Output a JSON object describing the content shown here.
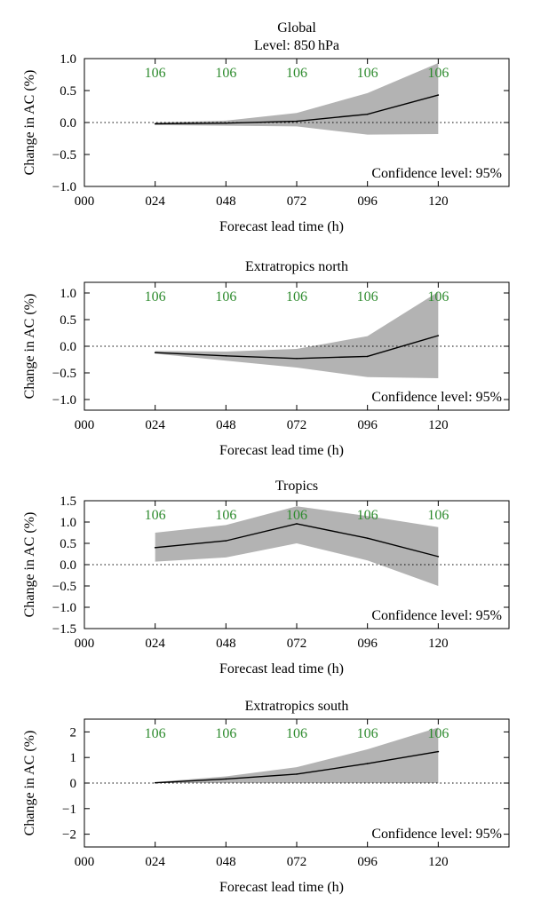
{
  "colors": {
    "band": "#b3b3b3",
    "line": "#000000",
    "count_text": "#2e8b2e",
    "axis": "#000000"
  },
  "chart_data": [
    {
      "type": "line",
      "title": "Global",
      "subtitle": "Level: 850 hPa",
      "xlabel": "Forecast lead time (h)",
      "ylabel": "Change in AC (%)",
      "xlim": [
        0,
        144
      ],
      "ylim": [
        -1.0,
        1.0
      ],
      "x_ticks": [
        0,
        24,
        48,
        72,
        96,
        120
      ],
      "x_tick_labels": [
        "000",
        "024",
        "048",
        "072",
        "096",
        "120"
      ],
      "y_ticks": [
        -1.0,
        -0.5,
        0.0,
        0.5,
        1.0
      ],
      "y_tick_labels": [
        "−1.0",
        "−0.5",
        "0.0",
        "0.5",
        "1.0"
      ],
      "x": [
        24,
        48,
        72,
        96,
        120
      ],
      "mean": [
        -0.02,
        -0.01,
        0.02,
        0.13,
        0.43
      ],
      "lower": [
        -0.04,
        -0.05,
        -0.06,
        -0.19,
        -0.18
      ],
      "upper": [
        0.0,
        0.03,
        0.15,
        0.46,
        0.93
      ],
      "sample_counts": [
        "106",
        "106",
        "106",
        "106",
        "106"
      ],
      "annotation": "Confidence level: 95%"
    },
    {
      "type": "line",
      "title": "Extratropics north",
      "xlabel": "Forecast lead time (h)",
      "ylabel": "Change in AC (%)",
      "xlim": [
        0,
        144
      ],
      "ylim": [
        -1.2,
        1.2
      ],
      "x_ticks": [
        0,
        24,
        48,
        72,
        96,
        120
      ],
      "x_tick_labels": [
        "000",
        "024",
        "048",
        "072",
        "096",
        "120"
      ],
      "y_ticks": [
        -1.0,
        -0.5,
        0.0,
        0.5,
        1.0
      ],
      "y_tick_labels": [
        "−1.0",
        "−0.5",
        "0.0",
        "0.5",
        "1.0"
      ],
      "x": [
        24,
        48,
        72,
        96,
        120
      ],
      "mean": [
        -0.12,
        -0.18,
        -0.23,
        -0.19,
        0.2
      ],
      "lower": [
        -0.14,
        -0.27,
        -0.4,
        -0.58,
        -0.6
      ],
      "upper": [
        -0.09,
        -0.1,
        -0.05,
        0.19,
        1.02
      ],
      "sample_counts": [
        "106",
        "106",
        "106",
        "106",
        "106"
      ],
      "annotation": "Confidence level: 95%"
    },
    {
      "type": "line",
      "title": "Tropics",
      "xlabel": "Forecast lead time (h)",
      "ylabel": "Change in AC (%)",
      "xlim": [
        0,
        144
      ],
      "ylim": [
        -1.5,
        1.5
      ],
      "x_ticks": [
        0,
        24,
        48,
        72,
        96,
        120
      ],
      "x_tick_labels": [
        "000",
        "024",
        "048",
        "072",
        "096",
        "120"
      ],
      "y_ticks": [
        -1.5,
        -1.0,
        -0.5,
        0.0,
        0.5,
        1.0,
        1.5
      ],
      "y_tick_labels": [
        "−1.5",
        "−1.0",
        "−0.5",
        "0.0",
        "0.5",
        "1.0",
        "1.5"
      ],
      "x": [
        24,
        48,
        72,
        96,
        120
      ],
      "mean": [
        0.4,
        0.56,
        0.96,
        0.62,
        0.19
      ],
      "lower": [
        0.07,
        0.17,
        0.5,
        0.1,
        -0.5
      ],
      "upper": [
        0.75,
        0.93,
        1.37,
        1.14,
        0.88
      ],
      "sample_counts": [
        "106",
        "106",
        "106",
        "106",
        "106"
      ],
      "annotation": "Confidence level: 95%"
    },
    {
      "type": "line",
      "title": "Extratropics south",
      "xlabel": "Forecast lead time (h)",
      "ylabel": "Change in AC (%)",
      "xlim": [
        0,
        144
      ],
      "ylim": [
        -2.5,
        2.5
      ],
      "x_ticks": [
        0,
        24,
        48,
        72,
        96,
        120
      ],
      "x_tick_labels": [
        "000",
        "024",
        "048",
        "072",
        "096",
        "120"
      ],
      "y_ticks": [
        -2,
        -1,
        0,
        1,
        2
      ],
      "y_tick_labels": [
        "−2",
        "−1",
        "0",
        "1",
        "2"
      ],
      "x": [
        24,
        48,
        72,
        96,
        120
      ],
      "mean": [
        0.01,
        0.16,
        0.35,
        0.76,
        1.23
      ],
      "lower": [
        0.0,
        0.0,
        0.0,
        0.0,
        0.0
      ],
      "upper": [
        0.04,
        0.26,
        0.62,
        1.32,
        2.17
      ],
      "sample_counts": [
        "106",
        "106",
        "106",
        "106",
        "106"
      ],
      "annotation": "Confidence level: 95%"
    }
  ]
}
